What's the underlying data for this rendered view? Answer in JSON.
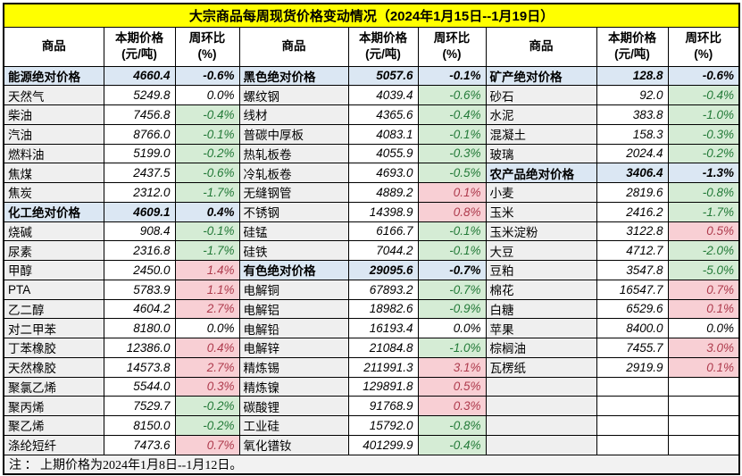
{
  "title": "大宗商品每周现货价格变动情况（2024年1月15日--1月19日）",
  "header": {
    "commodity": "商品",
    "price_l1": "本期价格",
    "price_l2": "(元/吨)",
    "pct_l1": "周环比",
    "pct_l2": "(%)"
  },
  "footnote": "注 ： 上期价格为2024年1月8日--1月12日。",
  "colors": {
    "title_bg": "#FFFF00",
    "category_bg": "#DBE7F3",
    "name_cell_bg": "#EFEFEF",
    "up_bg": "#F8CFD4",
    "up_text": "#AE3B4D",
    "down_bg": "#D5ECD5",
    "down_text": "#237A38",
    "footer_bg": "#F2F2F2"
  },
  "groups": [
    {
      "rows": [
        {
          "name": "能源绝对价格",
          "price": "4660.4",
          "pct": "-0.6%",
          "type": "category",
          "trend": "none"
        },
        {
          "name": "天然气",
          "price": "5249.8",
          "pct": "0.0%",
          "type": "item",
          "trend": "flat"
        },
        {
          "name": "柴油",
          "price": "7456.8",
          "pct": "-0.4%",
          "type": "item",
          "trend": "down"
        },
        {
          "name": "汽油",
          "price": "8766.0",
          "pct": "-0.1%",
          "type": "item",
          "trend": "down"
        },
        {
          "name": "燃料油",
          "price": "5199.0",
          "pct": "-0.2%",
          "type": "item",
          "trend": "down"
        },
        {
          "name": "焦煤",
          "price": "2437.5",
          "pct": "-0.6%",
          "type": "item",
          "trend": "down"
        },
        {
          "name": "焦炭",
          "price": "2312.0",
          "pct": "-1.7%",
          "type": "item",
          "trend": "down"
        },
        {
          "name": "化工绝对价格",
          "price": "4609.1",
          "pct": "0.4%",
          "type": "category",
          "trend": "none"
        },
        {
          "name": "烧碱",
          "price": "908.4",
          "pct": "-0.1%",
          "type": "item",
          "trend": "down"
        },
        {
          "name": "尿素",
          "price": "2316.8",
          "pct": "-1.7%",
          "type": "item",
          "trend": "down"
        },
        {
          "name": "甲醇",
          "price": "2450.0",
          "pct": "1.4%",
          "type": "item",
          "trend": "up"
        },
        {
          "name": "PTA",
          "price": "5783.9",
          "pct": "1.1%",
          "type": "item",
          "trend": "up"
        },
        {
          "name": "乙二醇",
          "price": "4604.2",
          "pct": "2.7%",
          "type": "item",
          "trend": "up"
        },
        {
          "name": "对二甲苯",
          "price": "8180.0",
          "pct": "0.0%",
          "type": "item",
          "trend": "flat"
        },
        {
          "name": "丁苯橡胶",
          "price": "12386.0",
          "pct": "0.4%",
          "type": "item",
          "trend": "up"
        },
        {
          "name": "天然橡胶",
          "price": "14573.8",
          "pct": "2.7%",
          "type": "item",
          "trend": "up"
        },
        {
          "name": "聚氯乙烯",
          "price": "5544.0",
          "pct": "0.3%",
          "type": "item",
          "trend": "up"
        },
        {
          "name": "聚丙烯",
          "price": "7529.7",
          "pct": "-0.2%",
          "type": "item",
          "trend": "down"
        },
        {
          "name": "聚乙烯",
          "price": "8150.0",
          "pct": "-0.2%",
          "type": "item",
          "trend": "down"
        },
        {
          "name": "涤纶短纤",
          "price": "7473.6",
          "pct": "0.7%",
          "type": "item",
          "trend": "up"
        }
      ]
    },
    {
      "rows": [
        {
          "name": "黑色绝对价格",
          "price": "5057.6",
          "pct": "-0.1%",
          "type": "category",
          "trend": "none"
        },
        {
          "name": "螺纹钢",
          "price": "4039.4",
          "pct": "-0.6%",
          "type": "item",
          "trend": "down"
        },
        {
          "name": "线材",
          "price": "4365.6",
          "pct": "-0.4%",
          "type": "item",
          "trend": "down"
        },
        {
          "name": "普碳中厚板",
          "price": "4083.1",
          "pct": "-0.1%",
          "type": "item",
          "trend": "down"
        },
        {
          "name": "热轧板卷",
          "price": "4055.9",
          "pct": "-0.3%",
          "type": "item",
          "trend": "down"
        },
        {
          "name": "冷轧板卷",
          "price": "4693.0",
          "pct": "-0.5%",
          "type": "item",
          "trend": "down"
        },
        {
          "name": "无缝钢管",
          "price": "4889.2",
          "pct": "0.1%",
          "type": "item",
          "trend": "up"
        },
        {
          "name": "不锈钢",
          "price": "14398.9",
          "pct": "0.8%",
          "type": "item",
          "trend": "up"
        },
        {
          "name": "硅锰",
          "price": "6166.7",
          "pct": "-0.1%",
          "type": "item",
          "trend": "down"
        },
        {
          "name": "硅铁",
          "price": "7044.2",
          "pct": "-0.1%",
          "type": "item",
          "trend": "down"
        },
        {
          "name": "有色绝对价格",
          "price": "29095.6",
          "pct": "-0.7%",
          "type": "category",
          "trend": "none"
        },
        {
          "name": "电解铜",
          "price": "67893.2",
          "pct": "-0.7%",
          "type": "item",
          "trend": "down"
        },
        {
          "name": "电解铝",
          "price": "18982.6",
          "pct": "-0.9%",
          "type": "item",
          "trend": "down"
        },
        {
          "name": "电解铅",
          "price": "16193.4",
          "pct": "0.0%",
          "type": "item",
          "trend": "flat"
        },
        {
          "name": "电解锌",
          "price": "21084.8",
          "pct": "-1.0%",
          "type": "item",
          "trend": "down"
        },
        {
          "name": "精炼锡",
          "price": "211991.3",
          "pct": "3.1%",
          "type": "item",
          "trend": "up"
        },
        {
          "name": "精炼镍",
          "price": "129891.8",
          "pct": "0.5%",
          "type": "item",
          "trend": "up"
        },
        {
          "name": "碳酸锂",
          "price": "91768.9",
          "pct": "0.3%",
          "type": "item",
          "trend": "up"
        },
        {
          "name": "工业硅",
          "price": "15792.0",
          "pct": "-0.8%",
          "type": "item",
          "trend": "down"
        },
        {
          "name": "氧化镨钕",
          "price": "401299.9",
          "pct": "-0.4%",
          "type": "item",
          "trend": "down"
        }
      ]
    },
    {
      "rows": [
        {
          "name": "矿产绝对价格",
          "price": "128.8",
          "pct": "-0.6%",
          "type": "category",
          "trend": "none"
        },
        {
          "name": "砂石",
          "price": "92.0",
          "pct": "-0.4%",
          "type": "item",
          "trend": "down"
        },
        {
          "name": "水泥",
          "price": "383.8",
          "pct": "-1.0%",
          "type": "item",
          "trend": "down"
        },
        {
          "name": "混凝土",
          "price": "158.3",
          "pct": "-0.3%",
          "type": "item",
          "trend": "down"
        },
        {
          "name": "玻璃",
          "price": "2024.4",
          "pct": "-0.2%",
          "type": "item",
          "trend": "down"
        },
        {
          "name": "农产品绝对价格",
          "price": "3406.4",
          "pct": "-1.3%",
          "type": "category",
          "trend": "none"
        },
        {
          "name": "小麦",
          "price": "2819.6",
          "pct": "-0.8%",
          "type": "item",
          "trend": "down"
        },
        {
          "name": "玉米",
          "price": "2416.2",
          "pct": "-1.7%",
          "type": "item",
          "trend": "down"
        },
        {
          "name": "玉米淀粉",
          "price": "3122.8",
          "pct": "0.5%",
          "type": "item",
          "trend": "up"
        },
        {
          "name": "大豆",
          "price": "4712.7",
          "pct": "-2.0%",
          "type": "item",
          "trend": "down"
        },
        {
          "name": "豆粕",
          "price": "3547.8",
          "pct": "-5.0%",
          "type": "item",
          "trend": "down"
        },
        {
          "name": "棉花",
          "price": "16547.7",
          "pct": "0.7%",
          "type": "item",
          "trend": "up"
        },
        {
          "name": "白糖",
          "price": "6529.6",
          "pct": "0.1%",
          "type": "item",
          "trend": "up"
        },
        {
          "name": "苹果",
          "price": "8400.0",
          "pct": "0.0%",
          "type": "item",
          "trend": "flat"
        },
        {
          "name": "棕榈油",
          "price": "7455.7",
          "pct": "3.0%",
          "type": "item",
          "trend": "up"
        },
        {
          "name": "瓦楞纸",
          "price": "2919.9",
          "pct": "0.1%",
          "type": "item",
          "trend": "up"
        },
        {
          "name": "",
          "price": "",
          "pct": "",
          "type": "empty",
          "trend": "none"
        },
        {
          "name": "",
          "price": "",
          "pct": "",
          "type": "empty",
          "trend": "none"
        },
        {
          "name": "",
          "price": "",
          "pct": "",
          "type": "empty",
          "trend": "none"
        },
        {
          "name": "",
          "price": "",
          "pct": "",
          "type": "empty",
          "trend": "none"
        }
      ]
    }
  ]
}
